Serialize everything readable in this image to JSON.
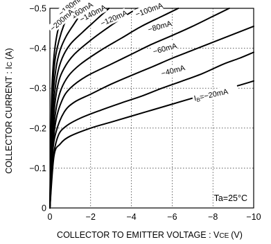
{
  "chart_data": {
    "type": "line",
    "title": "",
    "xlabel": "COLLECTOR TO EMITTER VOLTAGE : V",
    "xlabel_sub": "CE",
    "xlabel_unit": "(V)",
    "ylabel": "COLLECTOR CURRENT : I",
    "ylabel_sub": "C",
    "ylabel_unit": "(A)",
    "xlim": [
      0,
      -10
    ],
    "ylim": [
      0,
      -0.5
    ],
    "x_ticks": [
      0,
      -2,
      -4,
      -6,
      -8,
      -10
    ],
    "x_tick_labels": [
      "0",
      "−2",
      "−4",
      "−6",
      "−8",
      "−10"
    ],
    "y_ticks": [
      0,
      -0.1,
      -0.2,
      -0.3,
      -0.4,
      -0.5
    ],
    "y_tick_labels": [
      "0",
      "−0.1",
      "−0.2",
      "−0.3",
      "−0.4",
      "−0.5"
    ],
    "grid": true,
    "annotation": "Ta=25°C",
    "series": [
      {
        "name": "I",
        "name_sub": "B",
        "label": "=−20mA",
        "label_at": [
          -7.1,
          -0.268
        ],
        "label_angle": -12,
        "points": [
          [
            0,
            0
          ],
          [
            -0.2,
            -0.13
          ],
          [
            -0.5,
            -0.16
          ],
          [
            -1,
            -0.18
          ],
          [
            -2,
            -0.2
          ],
          [
            -3,
            -0.215
          ],
          [
            -4,
            -0.23
          ],
          [
            -5,
            -0.245
          ],
          [
            -6,
            -0.26
          ],
          [
            -7,
            -0.275
          ],
          [
            -8,
            -0.29
          ],
          [
            -9,
            -0.303
          ],
          [
            -10,
            -0.318
          ]
        ]
      },
      {
        "label": "−40mA",
        "label_at": [
          -5.5,
          -0.33
        ],
        "label_angle": -15,
        "points": [
          [
            0,
            0
          ],
          [
            -0.15,
            -0.12
          ],
          [
            -0.4,
            -0.18
          ],
          [
            -0.8,
            -0.205
          ],
          [
            -1.5,
            -0.225
          ],
          [
            -2.5,
            -0.245
          ],
          [
            -3.5,
            -0.263
          ],
          [
            -4.5,
            -0.28
          ],
          [
            -5.5,
            -0.3
          ],
          [
            -6.5,
            -0.318
          ],
          [
            -7.5,
            -0.337
          ],
          [
            -8.5,
            -0.36
          ],
          [
            -9.3,
            -0.375
          ],
          [
            -10,
            -0.39
          ]
        ]
      },
      {
        "label": "−60mA",
        "label_at": [
          -5.1,
          -0.385
        ],
        "label_angle": -15,
        "points": [
          [
            0,
            0
          ],
          [
            -0.12,
            -0.13
          ],
          [
            -0.3,
            -0.19
          ],
          [
            -0.7,
            -0.24
          ],
          [
            -1.2,
            -0.265
          ],
          [
            -2,
            -0.285
          ],
          [
            -3,
            -0.31
          ],
          [
            -4,
            -0.332
          ],
          [
            -5,
            -0.353
          ],
          [
            -6,
            -0.375
          ],
          [
            -7,
            -0.395
          ],
          [
            -8,
            -0.415
          ],
          [
            -9,
            -0.435
          ],
          [
            -10,
            -0.455
          ]
        ]
      },
      {
        "label": "−80mA",
        "label_at": [
          -4.85,
          -0.44
        ],
        "label_angle": -16,
        "points": [
          [
            0,
            0
          ],
          [
            -0.1,
            -0.13
          ],
          [
            -0.3,
            -0.22
          ],
          [
            -0.6,
            -0.27
          ],
          [
            -1,
            -0.3
          ],
          [
            -1.8,
            -0.33
          ],
          [
            -3,
            -0.36
          ],
          [
            -4,
            -0.385
          ],
          [
            -5,
            -0.41
          ],
          [
            -6,
            -0.432
          ],
          [
            -7,
            -0.455
          ],
          [
            -8,
            -0.48
          ],
          [
            -8.8,
            -0.5
          ]
        ]
      },
      {
        "label": "−100mA",
        "label_at": [
          -4.25,
          -0.478
        ],
        "label_angle": -20,
        "points": [
          [
            0,
            0
          ],
          [
            -0.1,
            -0.14
          ],
          [
            -0.25,
            -0.23
          ],
          [
            -0.5,
            -0.29
          ],
          [
            -0.9,
            -0.33
          ],
          [
            -1.5,
            -0.36
          ],
          [
            -2.5,
            -0.395
          ],
          [
            -3.5,
            -0.425
          ],
          [
            -4.5,
            -0.455
          ],
          [
            -5.5,
            -0.48
          ],
          [
            -6.3,
            -0.5
          ]
        ]
      },
      {
        "label": "−120mA",
        "label_at": [
          -2.55,
          -0.455
        ],
        "label_angle": -24,
        "points": [
          [
            0,
            0
          ],
          [
            -0.08,
            -0.14
          ],
          [
            -0.2,
            -0.24
          ],
          [
            -0.4,
            -0.31
          ],
          [
            -0.7,
            -0.35
          ],
          [
            -1.2,
            -0.385
          ],
          [
            -2,
            -0.42
          ],
          [
            -2.8,
            -0.45
          ],
          [
            -3.6,
            -0.478
          ],
          [
            -4.3,
            -0.5
          ]
        ]
      },
      {
        "label": "−140mA",
        "label_at": [
          -1.55,
          -0.465
        ],
        "label_angle": -28,
        "points": [
          [
            0,
            0
          ],
          [
            -0.07,
            -0.15
          ],
          [
            -0.18,
            -0.26
          ],
          [
            -0.35,
            -0.33
          ],
          [
            -0.6,
            -0.375
          ],
          [
            -1,
            -0.41
          ],
          [
            -1.6,
            -0.44
          ],
          [
            -2.2,
            -0.468
          ],
          [
            -2.9,
            -0.5
          ]
        ]
      },
      {
        "label": "−160mA",
        "label_at": [
          -0.95,
          -0.468
        ],
        "label_angle": -32,
        "points": [
          [
            0,
            0
          ],
          [
            -0.06,
            -0.16
          ],
          [
            -0.15,
            -0.28
          ],
          [
            -0.3,
            -0.35
          ],
          [
            -0.5,
            -0.395
          ],
          [
            -0.8,
            -0.43
          ],
          [
            -1.2,
            -0.462
          ],
          [
            -1.7,
            -0.5
          ]
        ]
      },
      {
        "label": "−180mA",
        "label_at": [
          -0.55,
          -0.48
        ],
        "label_angle": -38,
        "points": [
          [
            0,
            0
          ],
          [
            -0.05,
            -0.16
          ],
          [
            -0.12,
            -0.29
          ],
          [
            -0.25,
            -0.37
          ],
          [
            -0.45,
            -0.42
          ],
          [
            -0.7,
            -0.46
          ],
          [
            -1.05,
            -0.5
          ]
        ]
      },
      {
        "label": "−200mA",
        "label_at": [
          -0.15,
          -0.442
        ],
        "label_angle": -42,
        "points": [
          [
            0,
            0
          ],
          [
            -0.04,
            -0.17
          ],
          [
            -0.1,
            -0.3
          ],
          [
            -0.2,
            -0.38
          ],
          [
            -0.35,
            -0.435
          ],
          [
            -0.55,
            -0.475
          ],
          [
            -0.72,
            -0.5
          ]
        ]
      }
    ]
  }
}
